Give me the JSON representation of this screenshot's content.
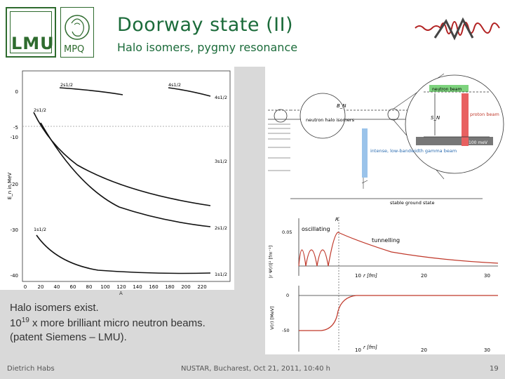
{
  "slide": {
    "title": "Doorway state (II)",
    "subtitle": "Halo isomers, pygmy resonance",
    "logos": {
      "lmu": "LMU",
      "mpq": "MPQ"
    },
    "body_lines": [
      "Halo isomers exist.",
      "10",
      "19",
      " x more brilliant micro neutron beams.",
      "(patent Siemens – LMU)."
    ],
    "footer": {
      "author": "Dietrich Habs",
      "event": "NUSTAR, Bucharest, Oct 21, 2011, 10:40 h",
      "page": "19"
    }
  },
  "level_plot": {
    "ylabel": "E_n in MeV",
    "xlabel": "A",
    "x_ticks": [
      "0",
      "20",
      "40",
      "60",
      "80",
      "100",
      "120",
      "140",
      "160",
      "180",
      "200",
      "220"
    ],
    "y_ticks": [
      "0",
      "-10",
      "-20",
      "-30",
      "-40"
    ],
    "y_marker": "-5",
    "labels": [
      "2s1/2",
      "4s1/2",
      "4s1/2",
      "2s1/2",
      "3s1/2",
      "1s1/2",
      "2s1/2",
      "1s1/2"
    ]
  },
  "scheme": {
    "bn": "B_N",
    "sn": "S_N",
    "neutron_halo": "neutron halo\nisomers",
    "gamma_beam": "intense,\nlow-bandwidth\ngamma beam",
    "proton_beam": "proton beam",
    "stable_ground": "stable ground state",
    "kev": "100 meV",
    "top_label": "neutron beam"
  },
  "wave_plot": {
    "r_label": "R",
    "oscillating": "oscillating",
    "tunnelling": "tunnelling",
    "y_label": "|r Ψ(r)|² [fm⁻¹]",
    "y_tick": "0.05",
    "x_unit": "r [fm]",
    "x_ticks": [
      "10",
      "20",
      "30"
    ]
  },
  "potential_plot": {
    "y_label": "V(r) [MeV]",
    "y_ticks": [
      "0",
      "-50"
    ],
    "x_unit": "r [fm]",
    "x_ticks": [
      "10",
      "20",
      "30"
    ]
  }
}
